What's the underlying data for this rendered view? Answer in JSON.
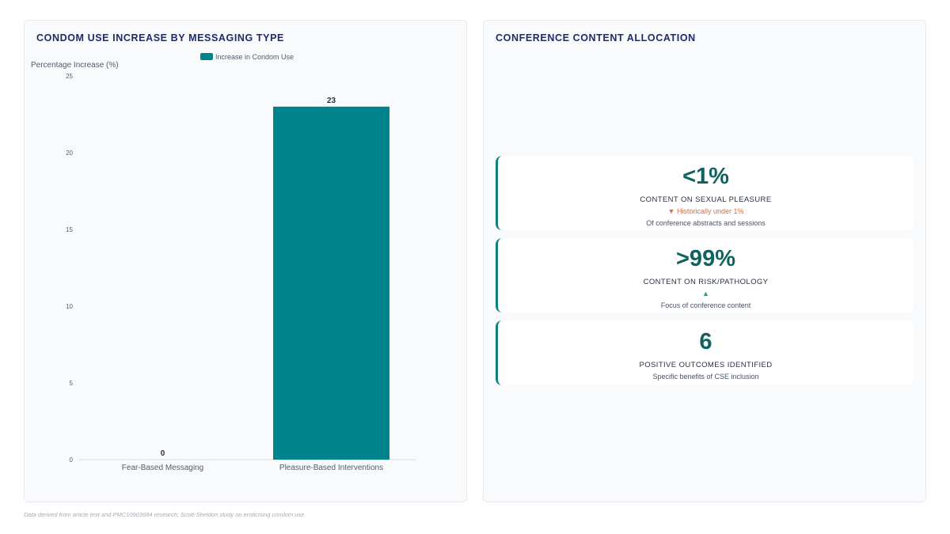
{
  "left_panel": {
    "title": "CONDOM USE INCREASE BY MESSAGING TYPE"
  },
  "right_panel": {
    "title": "CONFERENCE CONTENT ALLOCATION"
  },
  "chart_data": {
    "type": "bar",
    "title": "CONDOM USE INCREASE BY MESSAGING TYPE",
    "categories": [
      "Fear-Based Messaging",
      "Pleasure-Based Interventions"
    ],
    "series": [
      {
        "name": "Increase in Condom Use",
        "values": [
          0,
          23
        ],
        "color": "#00838a"
      }
    ],
    "ylabel": "Percentage Increase (%)",
    "xlabel": "",
    "ylim": [
      0,
      25
    ],
    "yticks": [
      0,
      5,
      10,
      15,
      20,
      25
    ],
    "grid": false,
    "legend": "top-center",
    "data_labels": true
  },
  "stats": [
    {
      "value": "<1%",
      "label": "CONTENT ON SEXUAL PLEASURE",
      "trend": "Historically under 1%",
      "trend_dir": "down",
      "desc": "Of conference abstracts and sessions"
    },
    {
      "value": ">99%",
      "label": "CONTENT ON RISK/PATHOLOGY",
      "trend": "",
      "trend_dir": "up",
      "desc": "Focus of conference content"
    },
    {
      "value": "6",
      "label": "POSITIVE OUTCOMES IDENTIFIED",
      "trend": null,
      "trend_dir": null,
      "desc": "Specific benefits of CSE inclusion"
    }
  ],
  "colors": {
    "accent": "#00838a",
    "stat_value": "#10625f",
    "trend_down": "#e06840",
    "trend_up": "#1aa58e",
    "title": "#1e2a6e"
  },
  "footnote": "Data derived from article text and PMC10903684 research; Scott-Sheldon study on eroticising condom use."
}
